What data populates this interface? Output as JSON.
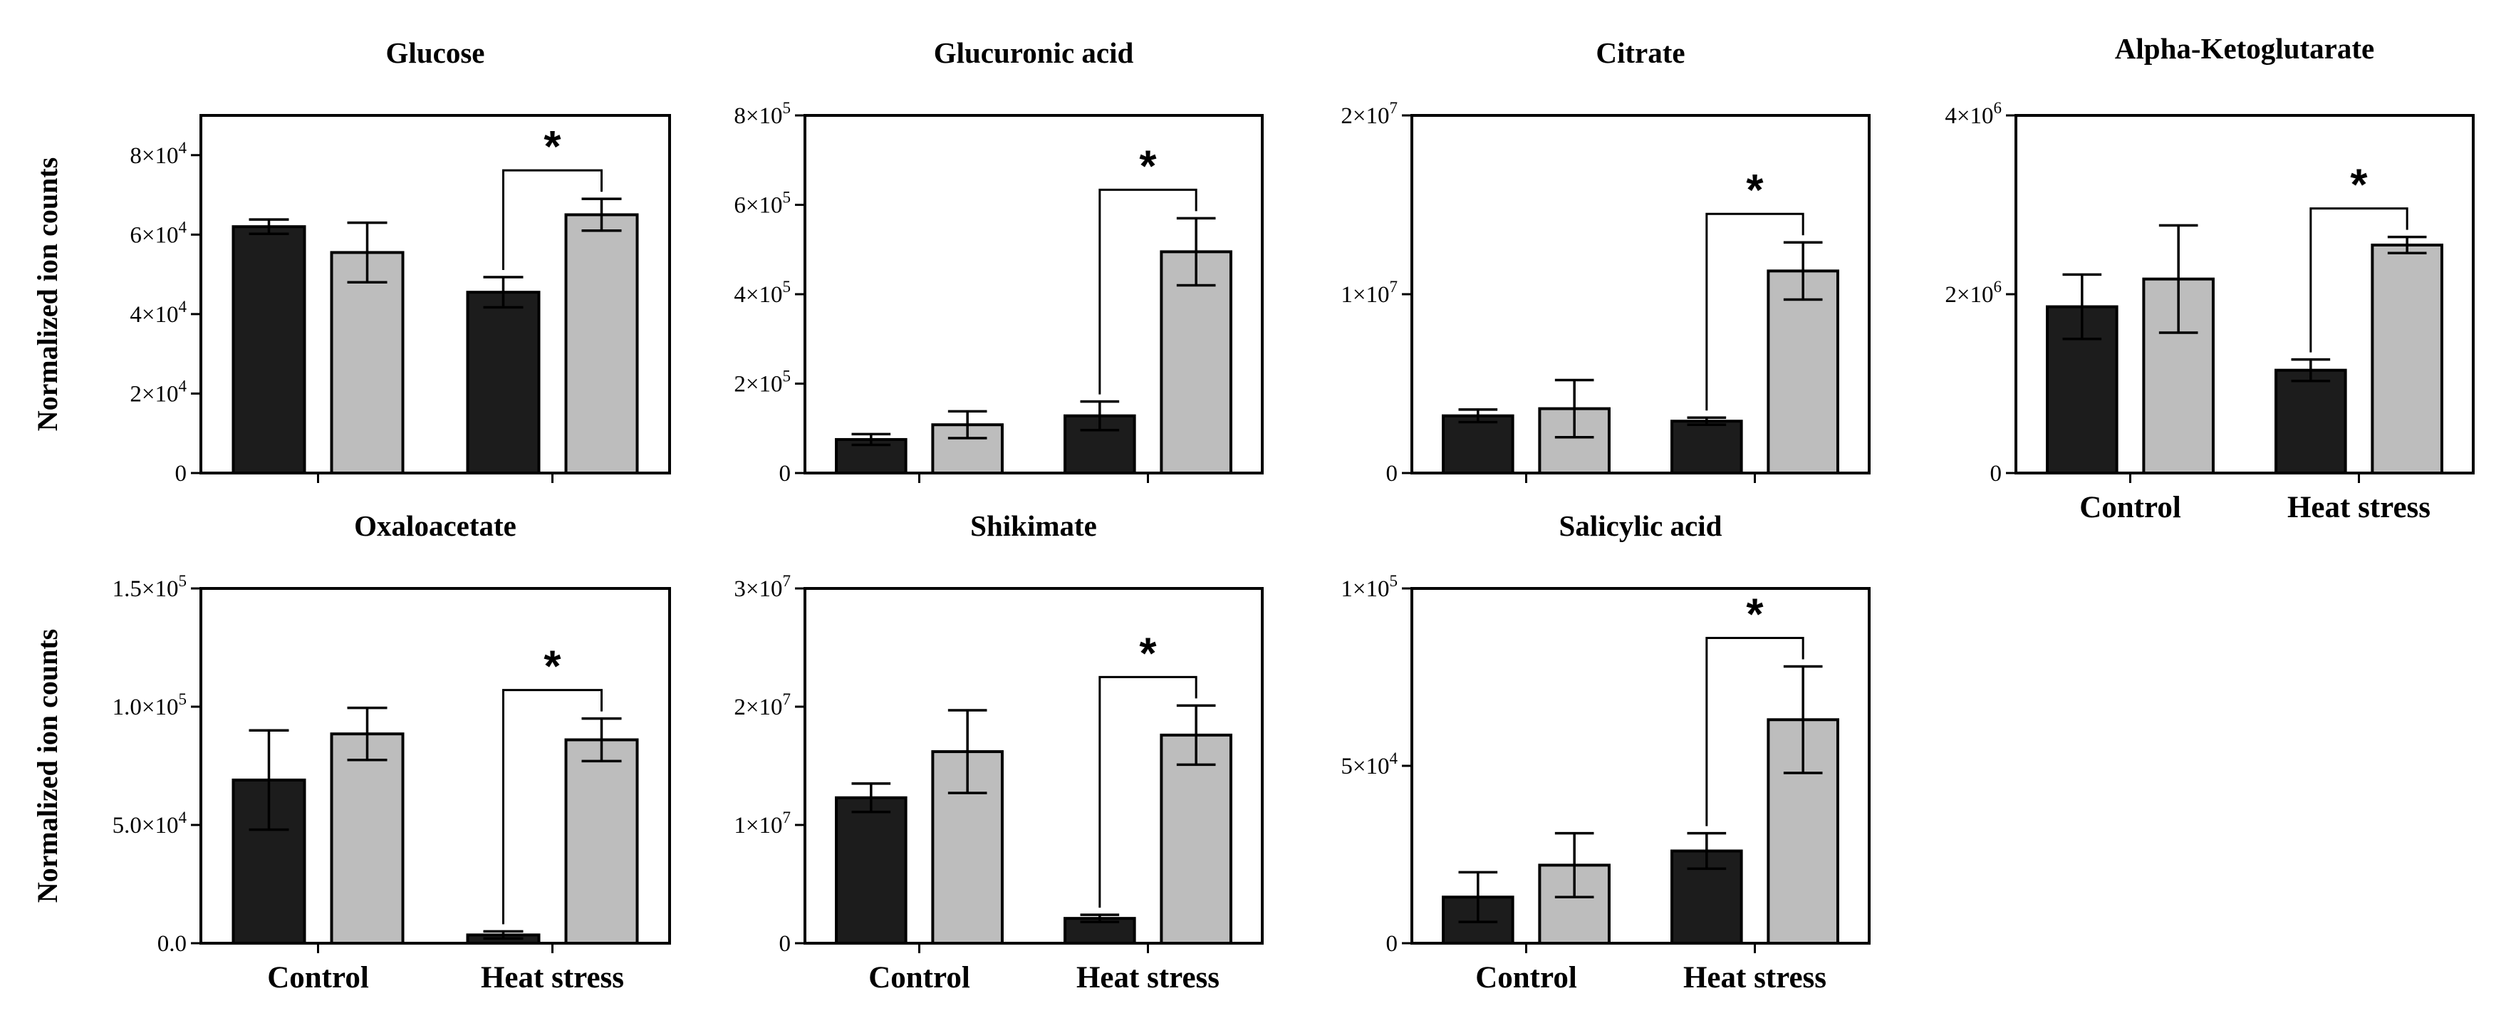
{
  "figure": {
    "y_axis_label": "Normalized ion counts",
    "group_labels": [
      "Control",
      "Heat stress"
    ],
    "colors": {
      "dark_bar": "#1c1c1c",
      "light_bar": "#bdbdbd",
      "axis": "#000000"
    }
  },
  "chart_data": [
    {
      "type": "bar",
      "title": "Glucose",
      "ylabel": "Normalized ion counts",
      "categories": [
        "Control",
        "Heat stress"
      ],
      "series": [
        {
          "name": "dark",
          "values": [
            62000,
            45500
          ],
          "errors": [
            1800,
            3800
          ]
        },
        {
          "name": "light",
          "values": [
            55500,
            65000
          ],
          "errors": [
            7500,
            4000
          ]
        }
      ],
      "ylim": [
        0,
        90000
      ],
      "yticks": [
        {
          "value": 0,
          "m": "0",
          "e": ""
        },
        {
          "value": 20000,
          "m": "2×10",
          "e": "4"
        },
        {
          "value": 40000,
          "m": "4×10",
          "e": "4"
        },
        {
          "value": 60000,
          "m": "6×10",
          "e": "4"
        },
        {
          "value": 80000,
          "m": "8×10",
          "e": "4"
        }
      ],
      "significance": {
        "label": "*"
      },
      "show_category_labels": false,
      "show_ylabel": true
    },
    {
      "type": "bar",
      "title": "Glucuronic acid",
      "ylabel": "",
      "categories": [
        "Control",
        "Heat stress"
      ],
      "series": [
        {
          "name": "dark",
          "values": [
            75000,
            128000
          ],
          "errors": [
            12000,
            32000
          ]
        },
        {
          "name": "light",
          "values": [
            108000,
            495000
          ],
          "errors": [
            30000,
            75000
          ]
        }
      ],
      "ylim": [
        0,
        800000
      ],
      "yticks": [
        {
          "value": 0,
          "m": "0",
          "e": ""
        },
        {
          "value": 200000,
          "m": "2×10",
          "e": "5"
        },
        {
          "value": 400000,
          "m": "4×10",
          "e": "5"
        },
        {
          "value": 600000,
          "m": "6×10",
          "e": "5"
        },
        {
          "value": 800000,
          "m": "8×10",
          "e": "5"
        }
      ],
      "significance": {
        "label": "*"
      },
      "show_category_labels": false,
      "show_ylabel": false
    },
    {
      "type": "bar",
      "title": "Citrate",
      "ylabel": "",
      "categories": [
        "Control",
        "Heat stress"
      ],
      "series": [
        {
          "name": "dark",
          "values": [
            3200000,
            2900000
          ],
          "errors": [
            350000,
            200000
          ]
        },
        {
          "name": "light",
          "values": [
            3600000,
            11300000
          ],
          "errors": [
            1600000,
            1600000
          ]
        }
      ],
      "ylim": [
        0,
        20000000
      ],
      "yticks": [
        {
          "value": 0,
          "m": "0",
          "e": ""
        },
        {
          "value": 10000000,
          "m": "1×10",
          "e": "7"
        },
        {
          "value": 20000000,
          "m": "2×10",
          "e": "7"
        }
      ],
      "significance": {
        "label": "*"
      },
      "show_category_labels": false,
      "show_ylabel": false
    },
    {
      "type": "bar",
      "title": "Alpha-Ketoglutarate",
      "ylabel": "",
      "categories": [
        "Control",
        "Heat stress"
      ],
      "series": [
        {
          "name": "dark",
          "values": [
            1860000,
            1150000
          ],
          "errors": [
            360000,
            120000
          ]
        },
        {
          "name": "light",
          "values": [
            2170000,
            2550000
          ],
          "errors": [
            600000,
            90000
          ]
        }
      ],
      "ylim": [
        0,
        4000000
      ],
      "yticks": [
        {
          "value": 0,
          "m": "0",
          "e": ""
        },
        {
          "value": 2000000,
          "m": "2×10",
          "e": "6"
        },
        {
          "value": 4000000,
          "m": "4×10",
          "e": "6"
        }
      ],
      "significance": {
        "label": "*"
      },
      "show_category_labels": true,
      "show_ylabel": false
    },
    {
      "type": "bar",
      "title": "Oxaloacetate",
      "ylabel": "Normalized ion counts",
      "categories": [
        "Control",
        "Heat stress"
      ],
      "series": [
        {
          "name": "dark",
          "values": [
            69000,
            3500
          ],
          "errors": [
            21000,
            1500
          ]
        },
        {
          "name": "light",
          "values": [
            88500,
            86000
          ],
          "errors": [
            11000,
            9000
          ]
        }
      ],
      "ylim": [
        0,
        150000
      ],
      "yticks": [
        {
          "value": 0,
          "m": "0.0",
          "e": ""
        },
        {
          "value": 50000,
          "m": "5.0×10",
          "e": "4"
        },
        {
          "value": 100000,
          "m": "1.0×10",
          "e": "5"
        },
        {
          "value": 150000,
          "m": "1.5×10",
          "e": "5"
        }
      ],
      "significance": {
        "label": "*"
      },
      "show_category_labels": true,
      "show_ylabel": true
    },
    {
      "type": "bar",
      "title": "Shikimate",
      "ylabel": "",
      "categories": [
        "Control",
        "Heat stress"
      ],
      "series": [
        {
          "name": "dark",
          "values": [
            12300000,
            2100000
          ],
          "errors": [
            1200000,
            300000
          ]
        },
        {
          "name": "light",
          "values": [
            16200000,
            17600000
          ],
          "errors": [
            3500000,
            2500000
          ]
        }
      ],
      "ylim": [
        0,
        30000000
      ],
      "yticks": [
        {
          "value": 0,
          "m": "0",
          "e": ""
        },
        {
          "value": 10000000,
          "m": "1×10",
          "e": "7"
        },
        {
          "value": 20000000,
          "m": "2×10",
          "e": "7"
        },
        {
          "value": 30000000,
          "m": "3×10",
          "e": "7"
        }
      ],
      "significance": {
        "label": "*"
      },
      "show_category_labels": true,
      "show_ylabel": false
    },
    {
      "type": "bar",
      "title": "Salicylic acid",
      "ylabel": "",
      "categories": [
        "Control",
        "Heat stress"
      ],
      "series": [
        {
          "name": "dark",
          "values": [
            13000,
            26000
          ],
          "errors": [
            7000,
            5000
          ]
        },
        {
          "name": "light",
          "values": [
            22000,
            63000
          ],
          "errors": [
            9000,
            15000
          ]
        }
      ],
      "ylim": [
        0,
        100000
      ],
      "yticks": [
        {
          "value": 0,
          "m": "0",
          "e": ""
        },
        {
          "value": 50000,
          "m": "5×10",
          "e": "4"
        },
        {
          "value": 100000,
          "m": "1×10",
          "e": "5"
        }
      ],
      "significance": {
        "label": "*"
      },
      "show_category_labels": true,
      "show_ylabel": false
    }
  ]
}
